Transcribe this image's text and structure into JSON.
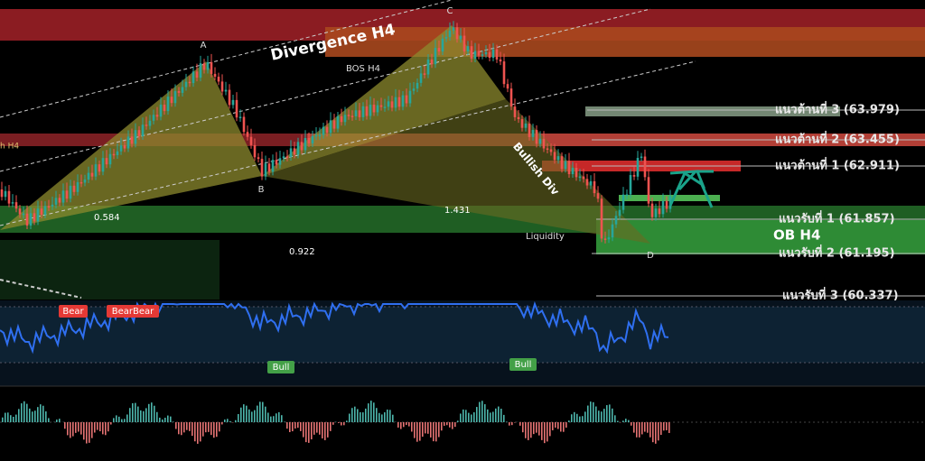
{
  "points": {
    "a": "A",
    "b": "B",
    "c": "C",
    "d": "D"
  },
  "annotations": {
    "divergence": "Divergence H4",
    "bos": "BOS H4",
    "bullish_div": "Bullish Div",
    "left_cut": "h H4",
    "ratio_1": "0.584",
    "ratio_2": "1.431",
    "ratio_3": "0.922",
    "liquidity": "Liquidity",
    "order_block": "OB H4"
  },
  "levels": [
    "แนวต้านที่ 3 (63.979)",
    "แนวต้านที่ 2 (63.455)",
    "แนวต้านที่ 1 (62.911)",
    "แนวรับที่ 1 (61.857)",
    "แนวรับที่ 2 (61.195)",
    "แนวรับที่ 3 (60.337)"
  ],
  "rsi_tags": [
    "Bear",
    "BearBear",
    "Bull",
    "Bull"
  ]
}
